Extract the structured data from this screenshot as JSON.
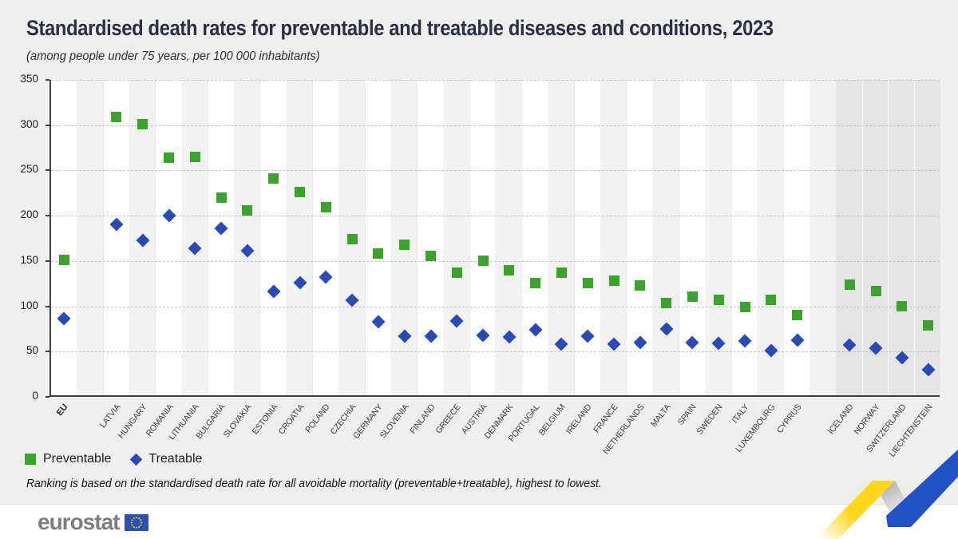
{
  "header": {
    "title": "Standardised death rates for preventable and treatable diseases and conditions, 2023",
    "subtitle": "(among people under 75 years, per 100 000 inhabitants)"
  },
  "chart_data": {
    "type": "scatter",
    "title": "Standardised death rates for preventable and treatable diseases and conditions, 2023",
    "subtitle": "(among people under 75 years, per 100 000 inhabitants)",
    "ylim": [
      0,
      350
    ],
    "yticks": [
      0,
      50,
      100,
      150,
      200,
      250,
      300,
      350
    ],
    "grid": "horizontal-dashed",
    "legend_position": "bottom-left",
    "series": [
      {
        "name": "Preventable",
        "marker": "square",
        "color": "#3aa32c"
      },
      {
        "name": "Treatable",
        "marker": "diamond",
        "color": "#2b49b5"
      }
    ],
    "slots": [
      {
        "label": "EU",
        "bold": true,
        "values": [
          151,
          86
        ]
      },
      {
        "spacer": true
      },
      {
        "label": "LATVIA",
        "values": [
          309,
          190
        ]
      },
      {
        "label": "HUNGARY",
        "values": [
          301,
          173
        ]
      },
      {
        "label": "ROMANIA",
        "values": [
          264,
          200
        ]
      },
      {
        "label": "LITHUANIA",
        "values": [
          265,
          164
        ]
      },
      {
        "label": "BULGARIA",
        "values": [
          220,
          186
        ]
      },
      {
        "label": "SLOVAKIA",
        "values": [
          206,
          161
        ]
      },
      {
        "label": "ESTONIA",
        "values": [
          241,
          116
        ]
      },
      {
        "label": "CROATIA",
        "values": [
          226,
          126
        ]
      },
      {
        "label": "POLAND",
        "values": [
          209,
          132
        ]
      },
      {
        "label": "CZECHIA",
        "values": [
          174,
          107
        ]
      },
      {
        "label": "GERMANY",
        "values": [
          158,
          83
        ]
      },
      {
        "label": "SLOVENIA",
        "values": [
          168,
          67
        ]
      },
      {
        "label": "FINLAND",
        "values": [
          156,
          67
        ]
      },
      {
        "label": "GREECE",
        "values": [
          137,
          84
        ]
      },
      {
        "label": "AUSTRIA",
        "values": [
          150,
          68
        ]
      },
      {
        "label": "DENMARK",
        "values": [
          140,
          66
        ]
      },
      {
        "label": "PORTUGAL",
        "values": [
          126,
          74
        ]
      },
      {
        "label": "BELGIUM",
        "values": [
          137,
          58
        ]
      },
      {
        "label": "IRELAND",
        "values": [
          126,
          67
        ]
      },
      {
        "label": "FRANCE",
        "values": [
          128,
          58
        ]
      },
      {
        "label": "NETHERLANDS",
        "values": [
          123,
          60
        ]
      },
      {
        "label": "MALTA",
        "values": [
          104,
          75
        ]
      },
      {
        "label": "SPAIN",
        "values": [
          111,
          60
        ]
      },
      {
        "label": "SWEDEN",
        "values": [
          107,
          59
        ]
      },
      {
        "label": "ITALY",
        "values": [
          99,
          62
        ]
      },
      {
        "label": "LUXEMBOURG",
        "values": [
          107,
          51
        ]
      },
      {
        "label": "CYPRUS",
        "values": [
          90,
          63
        ]
      },
      {
        "spacer": true
      },
      {
        "label": "ICELAND",
        "zone": "efta",
        "values": [
          124,
          57
        ]
      },
      {
        "label": "NORWAY",
        "zone": "efta",
        "values": [
          117,
          54
        ]
      },
      {
        "label": "SWITZERLAND",
        "zone": "efta",
        "values": [
          100,
          43
        ]
      },
      {
        "label": "LIECHTENSTEIN",
        "zone": "efta",
        "values": [
          79,
          30
        ]
      }
    ],
    "footnote": "Ranking is based on the standardised death rate for all avoidable mortality (preventable+treatable), highest to lowest."
  },
  "footer": {
    "brand": "eurostat"
  },
  "colors": {
    "band_light": "#f2f2f1",
    "band_efta": "#e5e5e5",
    "flag_blue": "#2d50b2",
    "star_yellow": "#ffcc00",
    "ribbon_yellow": "#ffd61a",
    "ribbon_gray_dark": "#a9a9a9",
    "ribbon_gray_light": "#f4f4f4",
    "ribbon_blue": "#2151c4"
  }
}
